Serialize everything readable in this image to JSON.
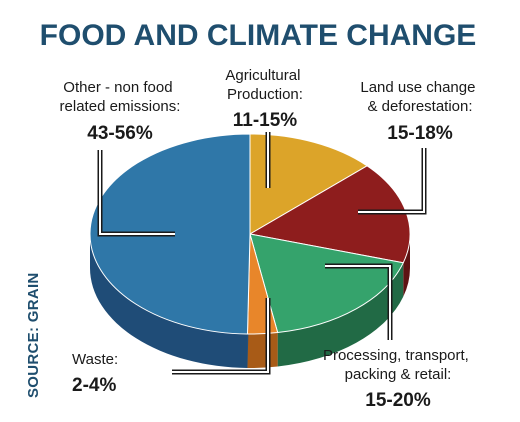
{
  "chart_data": {
    "type": "pie",
    "title": "FOOD AND CLIMATE CHANGE",
    "source": "SOURCE: GRAIN",
    "slices": [
      {
        "key": "other",
        "label_lines": [
          "Other - non food",
          "related emissions:"
        ],
        "range": "43-56%",
        "value": 49.5,
        "color": "#2f77a8",
        "side_color": "#1f4c77"
      },
      {
        "key": "agri",
        "label_lines": [
          "Agricultural",
          "Production:"
        ],
        "range": "11-15%",
        "value": 13,
        "color": "#dca429",
        "side_color": "#9d741a"
      },
      {
        "key": "landuse",
        "label_lines": [
          "Land use change",
          "& deforestation:"
        ],
        "range": "15-18%",
        "value": 16.5,
        "color": "#8e1d1d",
        "side_color": "#5e1313"
      },
      {
        "key": "processing",
        "label_lines": [
          "Processing, transport,",
          "packing & retail:"
        ],
        "range": "15-20%",
        "value": 17.5,
        "color": "#35a36c",
        "side_color": "#216a45"
      },
      {
        "key": "waste",
        "label_lines": [
          "Waste:"
        ],
        "range": "2-4%",
        "value": 3,
        "color": "#e8862a",
        "side_color": "#a85b17"
      }
    ]
  }
}
